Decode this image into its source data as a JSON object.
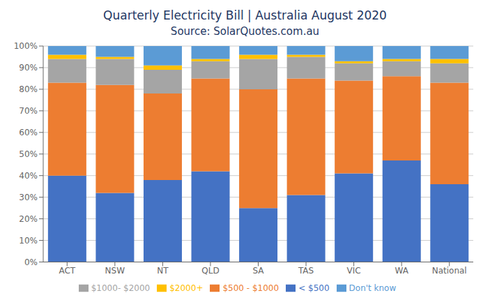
{
  "chart_data": {
    "type": "bar",
    "title": "Quarterly Electricity Bill | Australia August 2020",
    "subtitle": "Source: SolarQuotes.com.au",
    "categories": [
      "ACT",
      "NSW",
      "NT",
      "QLD",
      "SA",
      "TAS",
      "VIC",
      "WA",
      "National"
    ],
    "series": [
      {
        "name": "< $500",
        "color": "#4472C4",
        "values": [
          40,
          32,
          38,
          42,
          25,
          31,
          41,
          47,
          36
        ]
      },
      {
        "name": "$500 - $1000",
        "color": "#ED7D31",
        "values": [
          43,
          50,
          40,
          43,
          55,
          54,
          43,
          39,
          47
        ]
      },
      {
        "name": "$1000- $2000",
        "color": "#A5A5A5",
        "values": [
          11,
          12,
          11,
          8,
          14,
          10,
          8,
          7,
          9
        ]
      },
      {
        "name": "$2000+",
        "color": "#FFC000",
        "values": [
          2,
          1,
          2,
          1,
          2,
          1,
          1,
          1,
          2
        ]
      },
      {
        "name": "Don't know",
        "color": "#5B9BD5",
        "values": [
          4,
          5,
          9,
          6,
          4,
          4,
          7,
          6,
          6
        ]
      }
    ],
    "stacked": true,
    "ylim": [
      0,
      100
    ],
    "yticks": [
      {
        "value": 0,
        "label": "0%"
      },
      {
        "value": 10,
        "label": "10%"
      },
      {
        "value": 20,
        "label": "20%"
      },
      {
        "value": 30,
        "label": "30%"
      },
      {
        "value": 40,
        "label": "40%"
      },
      {
        "value": 50,
        "label": "50%"
      },
      {
        "value": 60,
        "label": "60%"
      },
      {
        "value": 70,
        "label": "70%"
      },
      {
        "value": 80,
        "label": "80%"
      },
      {
        "value": 90,
        "label": "90%"
      },
      {
        "value": 100,
        "label": "100%"
      }
    ],
    "grid": true,
    "legend": "bottom"
  }
}
